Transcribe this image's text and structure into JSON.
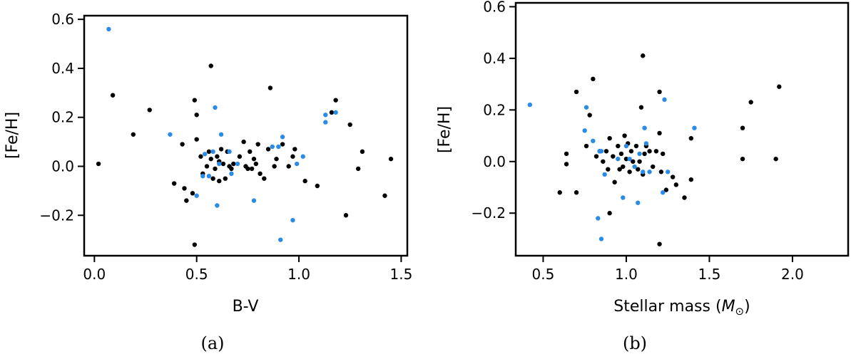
{
  "chart_data": [
    {
      "type": "scatter",
      "panel_label": "(a)",
      "xlabel": "B-V",
      "ylabel": "[Fe/H]",
      "xlim": [
        -0.05,
        1.53
      ],
      "ylim": [
        -0.365,
        0.615
      ],
      "xticks": [
        0.0,
        0.5,
        1.0,
        1.5
      ],
      "xtick_labels": [
        "0.0",
        "0.5",
        "1.0",
        "1.5"
      ],
      "yticks": [
        -0.2,
        0.0,
        0.2,
        0.4,
        0.6
      ],
      "ytick_labels": [
        "−0.2",
        "0.0",
        "0.2",
        "0.4",
        "0.6"
      ],
      "grid": false,
      "series": [
        {
          "color": "#000000",
          "points": [
            [
              0.02,
              0.01
            ],
            [
              0.09,
              0.29
            ],
            [
              0.19,
              0.13
            ],
            [
              0.27,
              0.23
            ],
            [
              0.39,
              -0.07
            ],
            [
              0.43,
              0.09
            ],
            [
              0.44,
              -0.09
            ],
            [
              0.45,
              -0.14
            ],
            [
              0.48,
              -0.11
            ],
            [
              0.49,
              -0.32
            ],
            [
              0.49,
              0.27
            ],
            [
              0.5,
              0.21
            ],
            [
              0.5,
              0.11
            ],
            [
              0.52,
              0.04
            ],
            [
              0.53,
              -0.03
            ],
            [
              0.55,
              0.0
            ],
            [
              0.56,
              0.06
            ],
            [
              0.57,
              0.41
            ],
            [
              0.57,
              0.03
            ],
            [
              0.58,
              -0.05
            ],
            [
              0.59,
              -0.01
            ],
            [
              0.6,
              0.04
            ],
            [
              0.61,
              -0.06
            ],
            [
              0.61,
              0.02
            ],
            [
              0.62,
              0.07
            ],
            [
              0.63,
              0.01
            ],
            [
              0.64,
              -0.05
            ],
            [
              0.65,
              0.06
            ],
            [
              0.66,
              0.0
            ],
            [
              0.67,
              -0.01
            ],
            [
              0.68,
              0.01
            ],
            [
              0.71,
              0.04
            ],
            [
              0.73,
              0.1
            ],
            [
              0.74,
              0.0
            ],
            [
              0.75,
              -0.01
            ],
            [
              0.76,
              0.06
            ],
            [
              0.77,
              -0.01
            ],
            [
              0.78,
              0.03
            ],
            [
              0.79,
              0.01
            ],
            [
              0.8,
              0.09
            ],
            [
              0.81,
              -0.03
            ],
            [
              0.83,
              -0.05
            ],
            [
              0.85,
              0.07
            ],
            [
              0.86,
              0.32
            ],
            [
              0.88,
              0.0
            ],
            [
              0.89,
              0.03
            ],
            [
              0.92,
              0.09
            ],
            [
              0.95,
              0.0
            ],
            [
              0.97,
              0.04
            ],
            [
              0.98,
              0.07
            ],
            [
              1.03,
              -0.06
            ],
            [
              1.09,
              -0.08
            ],
            [
              1.16,
              0.22
            ],
            [
              1.18,
              0.27
            ],
            [
              1.23,
              -0.2
            ],
            [
              1.25,
              0.17
            ],
            [
              1.29,
              -0.01
            ],
            [
              1.31,
              0.06
            ],
            [
              1.42,
              -0.12
            ],
            [
              1.45,
              0.03
            ]
          ]
        },
        {
          "color": "#2b8ce6",
          "points": [
            [
              0.07,
              0.56
            ],
            [
              0.37,
              0.13
            ],
            [
              0.5,
              -0.12
            ],
            [
              0.53,
              -0.04
            ],
            [
              0.54,
              0.05
            ],
            [
              0.56,
              -0.04
            ],
            [
              0.58,
              0.06
            ],
            [
              0.59,
              0.24
            ],
            [
              0.6,
              -0.16
            ],
            [
              0.61,
              0.01
            ],
            [
              0.62,
              0.13
            ],
            [
              0.66,
              0.06
            ],
            [
              0.67,
              -0.03
            ],
            [
              0.7,
              0.01
            ],
            [
              0.78,
              -0.14
            ],
            [
              0.87,
              0.08
            ],
            [
              0.9,
              0.08
            ],
            [
              0.91,
              -0.3
            ],
            [
              0.92,
              0.12
            ],
            [
              0.97,
              -0.22
            ],
            [
              0.99,
              0.01
            ],
            [
              1.02,
              0.04
            ],
            [
              1.13,
              0.18
            ],
            [
              1.13,
              0.21
            ],
            [
              1.18,
              0.22
            ]
          ]
        }
      ]
    },
    {
      "type": "scatter",
      "panel_label": "(b)",
      "xlabel_text": "Stellar mass (",
      "xlabel_symbol": "M",
      "xlabel_sub": "⊙",
      "xlabel_close": ")",
      "ylabel": "[Fe/H]",
      "xlim": [
        0.335,
        2.335
      ],
      "ylim": [
        -0.365,
        0.615
      ],
      "xticks": [
        0.5,
        1.0,
        1.5,
        2.0
      ],
      "xtick_labels": [
        "0.5",
        "1.0",
        "1.5",
        "2.0"
      ],
      "yticks": [
        -0.2,
        0.0,
        0.2,
        0.4,
        0.6
      ],
      "ytick_labels": [
        "−0.2",
        "0.0",
        "0.2",
        "0.4",
        "0.6"
      ],
      "grid": false,
      "series": [
        {
          "color": "#000000",
          "points": [
            [
              0.6,
              -0.12
            ],
            [
              0.64,
              0.03
            ],
            [
              0.64,
              -0.01
            ],
            [
              0.7,
              0.27
            ],
            [
              0.7,
              -0.12
            ],
            [
              0.76,
              0.06
            ],
            [
              0.78,
              0.18
            ],
            [
              0.8,
              0.32
            ],
            [
              0.82,
              0.02
            ],
            [
              0.84,
              0.04
            ],
            [
              0.86,
              0.0
            ],
            [
              0.88,
              0.04
            ],
            [
              0.89,
              -0.03
            ],
            [
              0.9,
              -0.2
            ],
            [
              0.9,
              0.09
            ],
            [
              0.92,
              0.02
            ],
            [
              0.93,
              -0.08
            ],
            [
              0.95,
              0.06
            ],
            [
              0.96,
              -0.03
            ],
            [
              0.97,
              0.03
            ],
            [
              0.98,
              -0.02
            ],
            [
              0.99,
              0.1
            ],
            [
              1.0,
              0.01
            ],
            [
              1.01,
              0.07
            ],
            [
              1.02,
              -0.04
            ],
            [
              1.03,
              0.04
            ],
            [
              1.04,
              0.0
            ],
            [
              1.06,
              0.06
            ],
            [
              1.07,
              -0.03
            ],
            [
              1.08,
              0.0
            ],
            [
              1.09,
              0.21
            ],
            [
              1.1,
              0.41
            ],
            [
              1.1,
              -0.05
            ],
            [
              1.11,
              0.03
            ],
            [
              1.12,
              0.06
            ],
            [
              1.14,
              0.04
            ],
            [
              1.16,
              -0.02
            ],
            [
              1.18,
              0.04
            ],
            [
              1.2,
              0.27
            ],
            [
              1.2,
              0.11
            ],
            [
              1.2,
              -0.32
            ],
            [
              1.21,
              -0.04
            ],
            [
              1.22,
              0.03
            ],
            [
              1.24,
              -0.11
            ],
            [
              1.28,
              -0.06
            ],
            [
              1.3,
              -0.09
            ],
            [
              1.35,
              -0.14
            ],
            [
              1.39,
              -0.07
            ],
            [
              1.39,
              0.09
            ],
            [
              1.7,
              0.13
            ],
            [
              1.7,
              0.01
            ],
            [
              1.75,
              0.23
            ],
            [
              1.9,
              0.01
            ],
            [
              1.92,
              0.29
            ]
          ]
        },
        {
          "color": "#2b8ce6",
          "points": [
            [
              0.42,
              0.22
            ],
            [
              0.75,
              0.12
            ],
            [
              0.76,
              0.21
            ],
            [
              0.8,
              0.08
            ],
            [
              0.83,
              -0.22
            ],
            [
              0.84,
              0.04
            ],
            [
              0.85,
              -0.3
            ],
            [
              0.85,
              0.04
            ],
            [
              0.87,
              -0.05
            ],
            [
              0.95,
              0.01
            ],
            [
              0.98,
              -0.14
            ],
            [
              1.0,
              0.06
            ],
            [
              1.02,
              0.01
            ],
            [
              1.05,
              -0.02
            ],
            [
              1.07,
              -0.16
            ],
            [
              1.08,
              0.03
            ],
            [
              1.1,
              -0.04
            ],
            [
              1.11,
              0.13
            ],
            [
              1.12,
              0.07
            ],
            [
              1.14,
              -0.04
            ],
            [
              1.22,
              -0.12
            ],
            [
              1.23,
              0.24
            ],
            [
              1.25,
              -0.04
            ],
            [
              1.41,
              0.13
            ]
          ]
        }
      ]
    }
  ]
}
